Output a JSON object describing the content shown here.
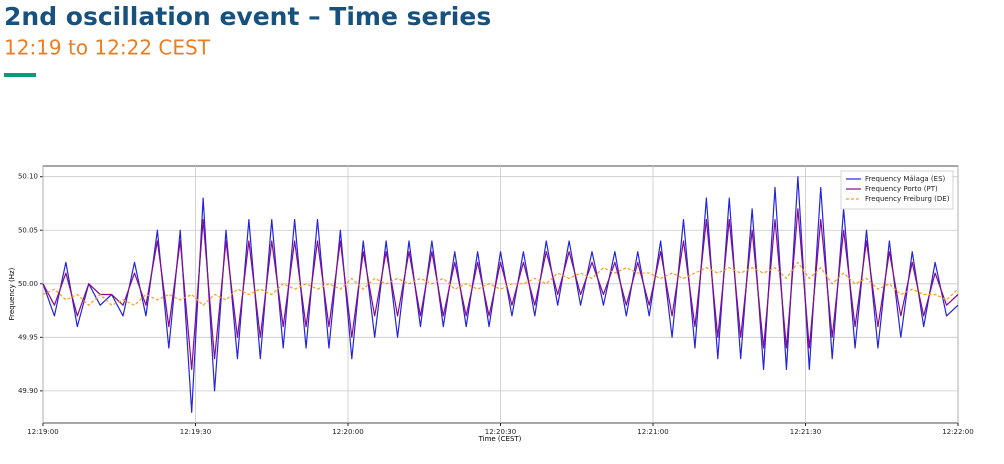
{
  "header": {
    "title": "2nd oscillation event – Time series",
    "subtitle": "12:19 to 12:22 CEST"
  },
  "chart_data": {
    "type": "line",
    "xlabel": "Time (CEST)",
    "ylabel": "Frequency (Hz)",
    "x": [
      0,
      2.25,
      4.5,
      6.75,
      9,
      11.25,
      13.5,
      15.75,
      18,
      20.25,
      22.5,
      24.75,
      27,
      29.25,
      31.5,
      33.75,
      36,
      38.25,
      40.5,
      42.75,
      45,
      47.25,
      49.5,
      51.75,
      54,
      56.25,
      58.5,
      60.75,
      63,
      65.25,
      67.5,
      69.75,
      72,
      74.25,
      76.5,
      78.75,
      81,
      83.25,
      85.5,
      87.75,
      90,
      92.25,
      94.5,
      96.75,
      99,
      101.25,
      103.5,
      105.75,
      108,
      110.25,
      112.5,
      114.75,
      117,
      119.25,
      121.5,
      123.75,
      126,
      128.25,
      130.5,
      132.75,
      135,
      137.25,
      139.5,
      141.75,
      144,
      146.25,
      148.5,
      150.75,
      153,
      155.25,
      157.5,
      159.75,
      162,
      164.25,
      166.5,
      168.75,
      171,
      173.25,
      175.5,
      177.75,
      180
    ],
    "series": [
      {
        "name": "Frequency Málaga (ES)",
        "color": "#2424e0",
        "linestyle": "solid",
        "values": [
          50.0,
          49.97,
          50.02,
          49.96,
          50.0,
          49.98,
          49.99,
          49.97,
          50.02,
          49.97,
          50.05,
          49.94,
          50.05,
          49.88,
          50.08,
          49.9,
          50.05,
          49.93,
          50.06,
          49.93,
          50.06,
          49.94,
          50.06,
          49.94,
          50.06,
          49.94,
          50.05,
          49.93,
          50.04,
          49.95,
          50.04,
          49.95,
          50.04,
          49.96,
          50.04,
          49.96,
          50.03,
          49.96,
          50.03,
          49.96,
          50.03,
          49.97,
          50.03,
          49.97,
          50.04,
          49.98,
          50.04,
          49.98,
          50.03,
          49.98,
          50.03,
          49.97,
          50.03,
          49.97,
          50.04,
          49.95,
          50.06,
          49.94,
          50.08,
          49.93,
          50.08,
          49.93,
          50.07,
          49.92,
          50.09,
          49.92,
          50.1,
          49.92,
          50.09,
          49.93,
          50.07,
          49.94,
          50.05,
          49.94,
          50.04,
          49.95,
          50.03,
          49.96,
          50.02,
          49.97,
          49.98
        ]
      },
      {
        "name": "Frequency Porto (PT)",
        "color": "#8a0a8a",
        "linestyle": "solid",
        "values": [
          50.0,
          49.98,
          50.01,
          49.97,
          50.0,
          49.99,
          49.99,
          49.98,
          50.01,
          49.98,
          50.04,
          49.96,
          50.04,
          49.92,
          50.06,
          49.93,
          50.04,
          49.95,
          50.04,
          49.95,
          50.04,
          49.96,
          50.04,
          49.96,
          50.04,
          49.96,
          50.04,
          49.95,
          50.03,
          49.97,
          50.03,
          49.97,
          50.03,
          49.97,
          50.03,
          49.97,
          50.02,
          49.97,
          50.02,
          49.97,
          50.02,
          49.98,
          50.02,
          49.98,
          50.03,
          49.99,
          50.03,
          49.99,
          50.02,
          49.99,
          50.02,
          49.98,
          50.02,
          49.98,
          50.03,
          49.97,
          50.04,
          49.96,
          50.06,
          49.95,
          50.06,
          49.95,
          50.05,
          49.94,
          50.06,
          49.94,
          50.07,
          49.94,
          50.06,
          49.95,
          50.05,
          49.96,
          50.04,
          49.96,
          50.03,
          49.97,
          50.02,
          49.97,
          50.01,
          49.98,
          49.99
        ]
      },
      {
        "name": "Frequency Freiburg (DE)",
        "color": "#ff9a1a",
        "linestyle": "dashed",
        "values": [
          49.99,
          49.995,
          49.985,
          49.99,
          49.98,
          49.99,
          49.98,
          49.985,
          49.98,
          49.99,
          49.985,
          49.99,
          49.985,
          49.99,
          49.98,
          49.99,
          49.985,
          49.995,
          49.99,
          49.995,
          49.99,
          50.0,
          49.995,
          50.0,
          49.995,
          50.0,
          49.995,
          50.005,
          49.995,
          50.005,
          50.0,
          50.005,
          50.0,
          50.005,
          50.0,
          50.005,
          49.995,
          50.0,
          49.995,
          50.0,
          49.995,
          50.0,
          50.0,
          50.005,
          50.0,
          50.01,
          50.005,
          50.01,
          50.005,
          50.015,
          50.01,
          50.015,
          50.01,
          50.01,
          50.005,
          50.01,
          50.005,
          50.01,
          50.015,
          50.01,
          50.015,
          50.01,
          50.015,
          50.01,
          50.015,
          50.005,
          50.02,
          50.005,
          50.015,
          50.0,
          50.01,
          50.0,
          50.005,
          49.995,
          50.0,
          49.99,
          49.995,
          49.99,
          49.99,
          49.985,
          49.995
        ]
      }
    ],
    "xlim": [
      0,
      180
    ],
    "xticks": [
      {
        "value": 0,
        "label": "12:19:00"
      },
      {
        "value": 30,
        "label": "12:19:30"
      },
      {
        "value": 60,
        "label": "12:20:00"
      },
      {
        "value": 90,
        "label": "12:20:30"
      },
      {
        "value": 120,
        "label": "12:21:00"
      },
      {
        "value": 150,
        "label": "12:21:30"
      },
      {
        "value": 180,
        "label": "12:22:00"
      }
    ],
    "ylim": [
      49.87,
      50.11
    ],
    "yticks": [
      {
        "value": 49.9,
        "label": "49.90"
      },
      {
        "value": 49.95,
        "label": "49.95"
      },
      {
        "value": 50,
        "label": "50.00"
      },
      {
        "value": 50.05,
        "label": "50.05"
      },
      {
        "value": 50.1,
        "label": "50.10"
      }
    ],
    "grid": true,
    "legend": "upper right"
  }
}
